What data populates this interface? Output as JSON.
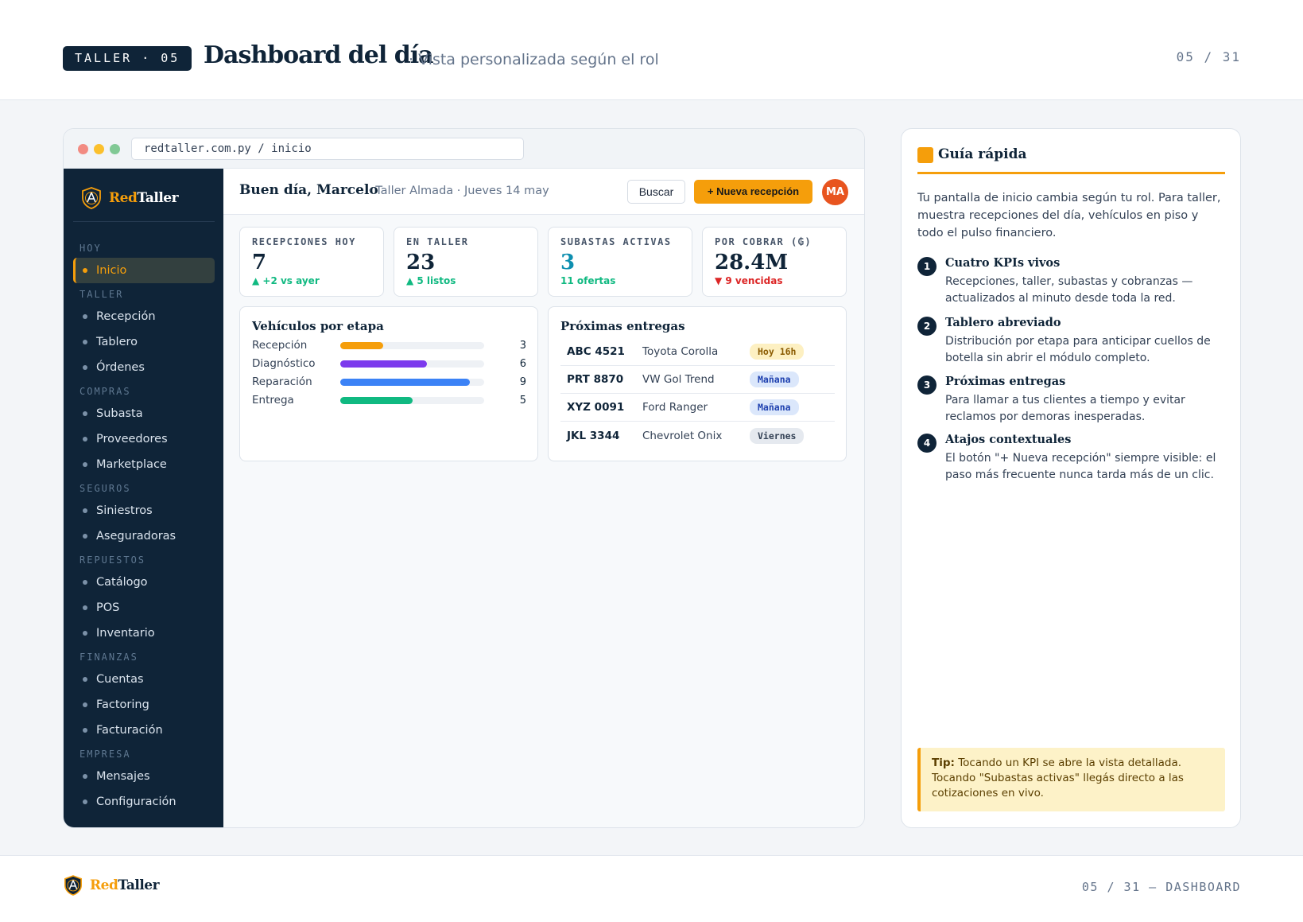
{
  "header": {
    "section_tag": "TALLER · 05",
    "title": "Dashboard del día",
    "subtitle": "· Vista personalizada según el rol",
    "counter": "05 / 31"
  },
  "browser": {
    "url": "redtaller.com.py / inicio"
  },
  "app": {
    "brand_red": "Red",
    "brand_taller": "Taller",
    "sidebar": {
      "groups": [
        {
          "label": "HOY",
          "items": [
            {
              "label": "Inicio",
              "active": true
            }
          ]
        },
        {
          "label": "TALLER",
          "items": [
            {
              "label": "Recepción"
            },
            {
              "label": "Tablero"
            },
            {
              "label": "Órdenes"
            }
          ]
        },
        {
          "label": "COMPRAS",
          "items": [
            {
              "label": "Subasta"
            },
            {
              "label": "Proveedores"
            },
            {
              "label": "Marketplace"
            }
          ]
        },
        {
          "label": "SEGUROS",
          "items": [
            {
              "label": "Siniestros"
            },
            {
              "label": "Aseguradoras"
            }
          ]
        },
        {
          "label": "REPUESTOS",
          "items": [
            {
              "label": "Catálogo"
            },
            {
              "label": "POS"
            },
            {
              "label": "Inventario"
            }
          ]
        },
        {
          "label": "FINANZAS",
          "items": [
            {
              "label": "Cuentas"
            },
            {
              "label": "Factoring"
            },
            {
              "label": "Facturación"
            }
          ]
        },
        {
          "label": "EMPRESA",
          "items": [
            {
              "label": "Mensajes"
            },
            {
              "label": "Configuración"
            }
          ]
        }
      ]
    },
    "topbar": {
      "greeting": "Buen día, Marcelo",
      "context": "· Taller Almada · Jueves 14 may",
      "search_label": "Buscar",
      "new_label": "+ Nueva recepción",
      "avatar_initials": "MA"
    },
    "kpis": [
      {
        "label": "RECEPCIONES HOY",
        "value": "7",
        "delta": "▲ +2 vs ayer",
        "tone": "pos"
      },
      {
        "label": "EN TALLER",
        "value": "23",
        "delta": "▲ 5 listos",
        "tone": "pos"
      },
      {
        "label": "SUBASTAS ACTIVAS",
        "value": "3",
        "delta": "11 ofertas",
        "tone": "teal"
      },
      {
        "label": "POR COBRAR (₲)",
        "value": "28.4M",
        "delta": "▼ 9 vencidas",
        "tone": "neg"
      }
    ],
    "stages": {
      "title": "Vehículos por etapa",
      "max": 10,
      "rows": [
        {
          "label": "Recepción",
          "count": 3,
          "color": "#f59e0b"
        },
        {
          "label": "Diagnóstico",
          "count": 6,
          "color": "#7c3aed"
        },
        {
          "label": "Reparación",
          "count": 9,
          "color": "#3b82f6"
        },
        {
          "label": "Entrega",
          "count": 5,
          "color": "#10b981"
        }
      ]
    },
    "deliveries": {
      "title": "Próximas entregas",
      "rows": [
        {
          "plate": "ABC 4521",
          "car": "Toyota Corolla",
          "when": "Hoy 16h",
          "tone": "today"
        },
        {
          "plate": "PRT 8870",
          "car": "VW Gol Trend",
          "when": "Mañana",
          "tone": "soon"
        },
        {
          "plate": "XYZ 0091",
          "car": "Ford Ranger",
          "when": "Mañana",
          "tone": "soon"
        },
        {
          "plate": "JKL 3344",
          "car": "Chevrolet Onix",
          "when": "Viernes",
          "tone": "later"
        }
      ]
    }
  },
  "guide": {
    "title": "Guía rápida",
    "intro": "Tu pantalla de inicio cambia según tu rol. Para taller, muestra recepciones del día, vehículos en piso y todo el pulso financiero.",
    "steps": [
      {
        "num": "1",
        "title": "Cuatro KPIs vivos",
        "body": "Recepciones, taller, subastas y cobranzas — actualizados al minuto desde toda la red."
      },
      {
        "num": "2",
        "title": "Tablero abreviado",
        "body": "Distribución por etapa para anticipar cuellos de botella sin abrir el módulo completo."
      },
      {
        "num": "3",
        "title": "Próximas entregas",
        "body": "Para llamar a tus clientes a tiempo y evitar reclamos por demoras inesperadas."
      },
      {
        "num": "4",
        "title": "Atajos contextuales",
        "body": "El botón \"+ Nueva recepción\" siempre visible: el paso más frecuente nunca tarda más de un clic."
      }
    ],
    "tip_label": "Tip:",
    "tip_text": " Tocando un KPI se abre la vista detallada. Tocando \"Subastas activas\" llegás directo a las cotizaciones en vivo."
  },
  "footer": {
    "brand_red": "Red",
    "brand_taller": "Taller",
    "meta": "05 / 31 — DASHBOARD"
  },
  "colors": {
    "navy": "#0f2438",
    "accent": "#f59e0b",
    "positive": "#10b981",
    "negative": "#dc2626"
  }
}
